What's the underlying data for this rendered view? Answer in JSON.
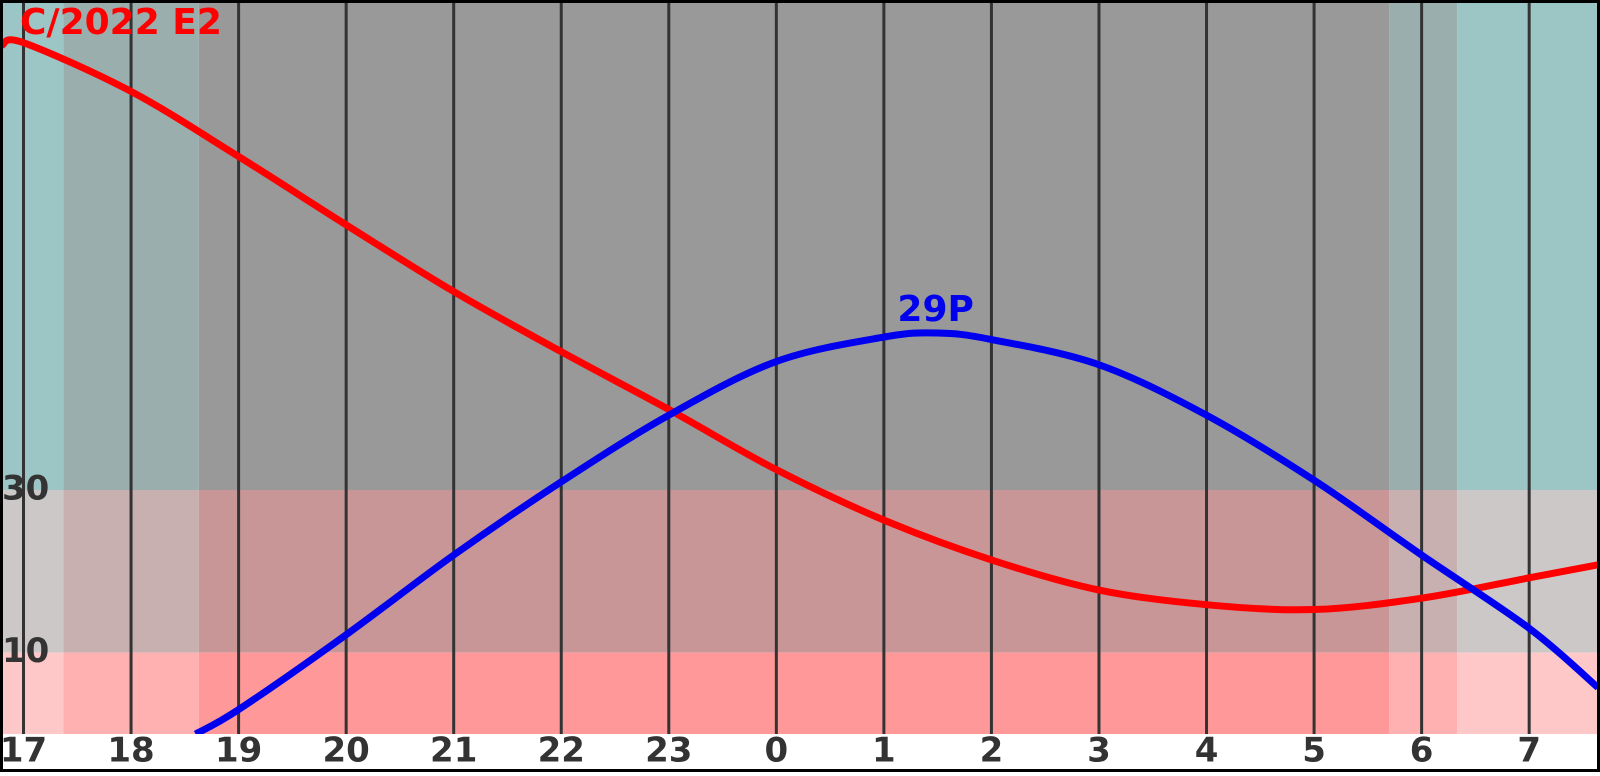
{
  "chart_data": {
    "type": "line",
    "xlim": [
      16.8,
      31.64
    ],
    "ylim": [
      0,
      90
    ],
    "xticks": [
      17,
      18,
      19,
      20,
      21,
      22,
      23,
      {
        "value": 24,
        "label": "0"
      },
      {
        "value": 25,
        "label": "1"
      },
      {
        "value": 26,
        "label": "2"
      },
      {
        "value": 27,
        "label": "3"
      },
      {
        "value": 28,
        "label": "4"
      },
      {
        "value": 29,
        "label": "5"
      },
      {
        "value": 30,
        "label": "6"
      },
      {
        "value": 31,
        "label": "7"
      }
    ],
    "yticks": [
      10,
      30
    ],
    "grid": true,
    "altitude_bands": [
      {
        "range": [
          30,
          90
        ],
        "day": "#9cc6c6",
        "twilight": "#9aaeae",
        "night": "#999999"
      },
      {
        "range": [
          10,
          30
        ],
        "day": "#ccc8c8",
        "twilight": "#c9b0b0",
        "night": "#c89696"
      },
      {
        "range": [
          0,
          10
        ],
        "day": "#ffc8c8",
        "twilight": "#ffb0b0",
        "night": "#ff9999"
      }
    ],
    "sky": [
      {
        "x": [
          16.8,
          17.37
        ],
        "phase": "day"
      },
      {
        "x": [
          17.37,
          18.63
        ],
        "phase": "twilight"
      },
      {
        "x": [
          18.63,
          29.7
        ],
        "phase": "night"
      },
      {
        "x": [
          29.7,
          30.33
        ],
        "phase": "twilight"
      },
      {
        "x": [
          30.33,
          31.64
        ],
        "phase": "day"
      }
    ],
    "series": [
      {
        "name": "C/2022 E2",
        "color": "#ff0000",
        "x": [
          16.8,
          17,
          18,
          19,
          20,
          21,
          22,
          23,
          24,
          25,
          26,
          27,
          28,
          29,
          30,
          31,
          31.64
        ],
        "values": [
          84.7,
          85,
          79,
          71,
          62.6,
          54.4,
          47,
          39.9,
          32.5,
          26.3,
          21.4,
          17.7,
          15.9,
          15.3,
          16.7,
          19.2,
          20.8
        ]
      },
      {
        "name": "29P",
        "color": "#0000ee",
        "x": [
          18.6,
          19,
          20,
          21,
          22,
          23,
          24,
          25,
          25.5,
          26,
          27,
          28,
          29,
          30,
          31,
          31.64
        ],
        "values": [
          0,
          3,
          12.2,
          22,
          31,
          39.2,
          45.8,
          48.8,
          49.3,
          48.5,
          45.4,
          39.2,
          31.2,
          22,
          13,
          5.7
        ]
      }
    ]
  }
}
